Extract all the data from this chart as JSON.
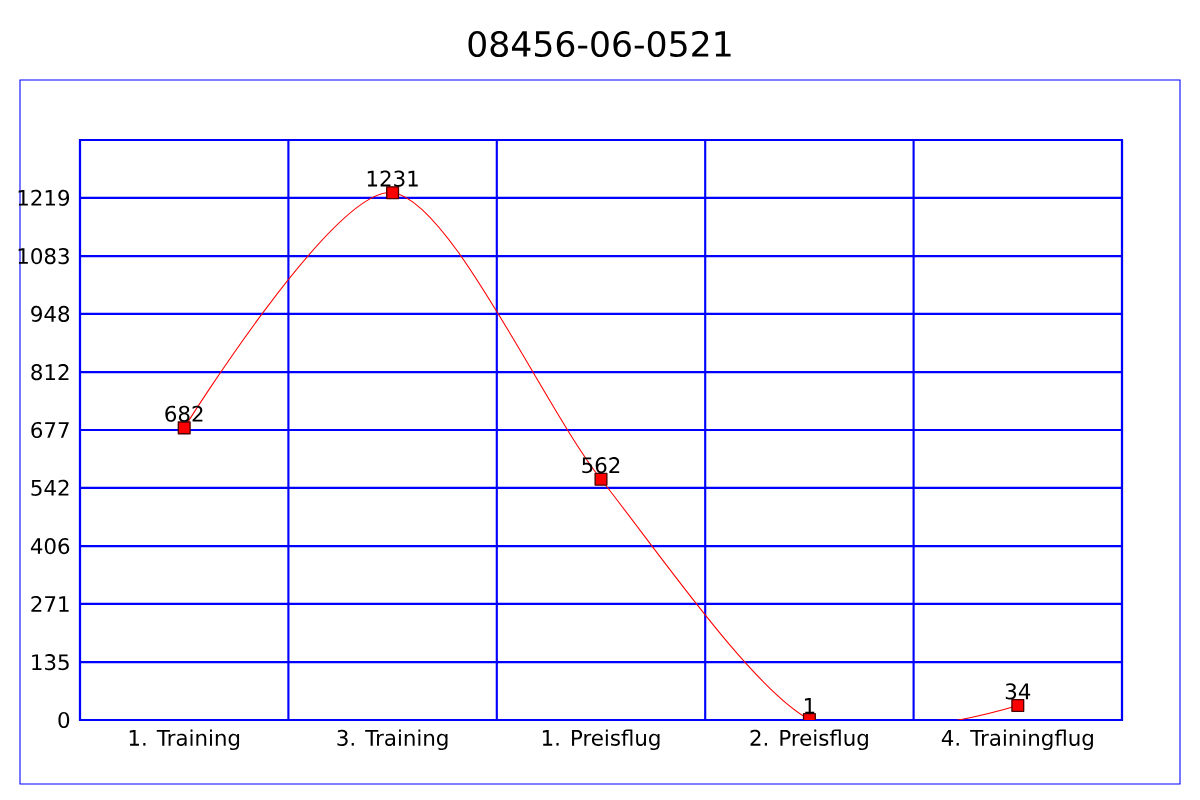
{
  "chart_data": {
    "type": "line",
    "title": "08456-06-0521",
    "categories": [
      "1. Training",
      "3. Training",
      "1. Preisflug",
      "2. Preisflug",
      "4. Trainingflug"
    ],
    "values": [
      682,
      1231,
      562,
      1,
      34
    ],
    "color": "#ff0000",
    "ylim": [
      0,
      1354
    ],
    "yticks": [
      0,
      135,
      271,
      406,
      542,
      677,
      812,
      948,
      1083,
      1219,
      {
        "value": 1354,
        "label": null
      }
    ],
    "grid": true,
    "marker": "square",
    "data_labels": true
  }
}
